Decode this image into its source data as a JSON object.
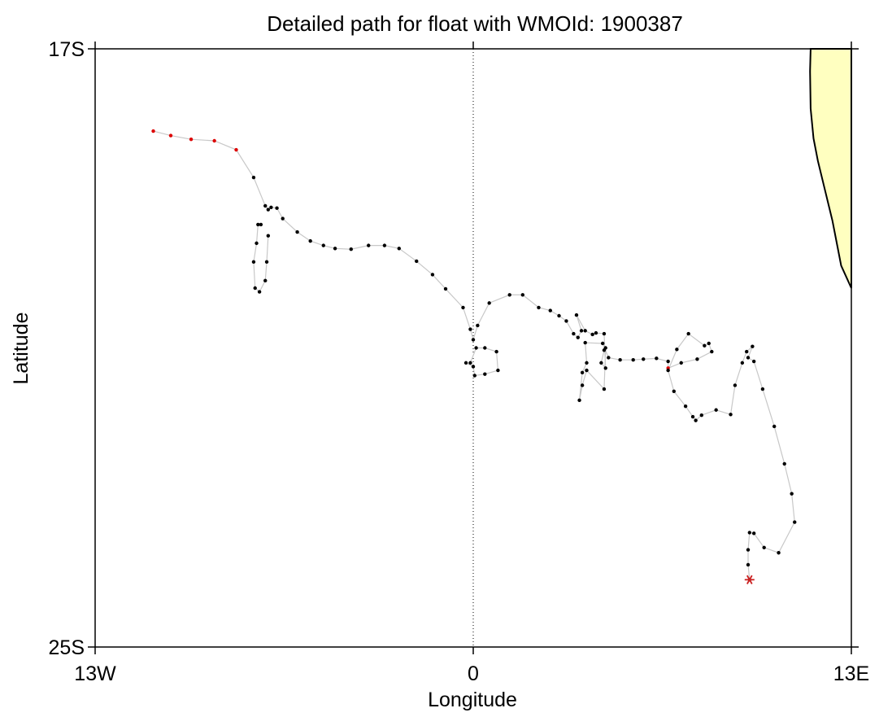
{
  "chart_data": {
    "type": "scatter",
    "title": "Detailed path for float with WMOId: 1900387",
    "xlabel": "Longitude",
    "ylabel": "Latitude",
    "xlim": [
      -13,
      13
    ],
    "ylim": [
      -25,
      -17
    ],
    "x_ticks": [
      {
        "value": -13,
        "label": "13W"
      },
      {
        "value": 0,
        "label": "0"
      },
      {
        "value": 13,
        "label": "13E"
      }
    ],
    "y_ticks": [
      {
        "value": -17,
        "label": "17S"
      },
      {
        "value": -25,
        "label": "25S"
      }
    ],
    "zero_meridian_dotted": true,
    "grid": false,
    "colors": {
      "path_line": "#c8c8c8",
      "profile_point": "#000000",
      "highlight_point": "#dd0000",
      "start_marker": "#cc2222",
      "land": "#ffffc0",
      "coastline": "#000000"
    },
    "start_marker": {
      "x": 9.5,
      "y": -24.1,
      "symbol": "asterisk"
    },
    "path": [
      {
        "x": -11.0,
        "y": -18.1,
        "highlight": true
      },
      {
        "x": -10.4,
        "y": -18.16,
        "highlight": true
      },
      {
        "x": -9.7,
        "y": -18.21,
        "highlight": true
      },
      {
        "x": -8.9,
        "y": -18.23,
        "highlight": true
      },
      {
        "x": -8.15,
        "y": -18.35,
        "highlight": true
      },
      {
        "x": -7.55,
        "y": -18.72
      },
      {
        "x": -7.15,
        "y": -19.1
      },
      {
        "x": -7.05,
        "y": -19.15
      },
      {
        "x": -6.95,
        "y": -19.12
      },
      {
        "x": -6.75,
        "y": -19.13
      },
      {
        "x": -6.55,
        "y": -19.27
      },
      {
        "x": -6.05,
        "y": -19.45
      },
      {
        "x": -5.6,
        "y": -19.57
      },
      {
        "x": -5.15,
        "y": -19.63
      },
      {
        "x": -4.75,
        "y": -19.67
      },
      {
        "x": -4.2,
        "y": -19.68
      },
      {
        "x": -3.6,
        "y": -19.63
      },
      {
        "x": -3.05,
        "y": -19.63
      },
      {
        "x": -2.55,
        "y": -19.67
      },
      {
        "x": -1.95,
        "y": -19.84
      },
      {
        "x": -1.4,
        "y": -20.02
      },
      {
        "x": -0.95,
        "y": -20.21
      },
      {
        "x": -0.35,
        "y": -20.46
      },
      {
        "x": -0.1,
        "y": -20.75
      },
      {
        "x": 0.0,
        "y": -20.89
      },
      {
        "x": 0.15,
        "y": -20.7
      },
      {
        "x": 0.55,
        "y": -20.4
      },
      {
        "x": 1.25,
        "y": -20.29
      },
      {
        "x": 1.7,
        "y": -20.29
      },
      {
        "x": 2.25,
        "y": -20.46
      },
      {
        "x": 2.65,
        "y": -20.5
      },
      {
        "x": 2.95,
        "y": -20.57
      },
      {
        "x": 3.2,
        "y": -20.64
      },
      {
        "x": 3.45,
        "y": -20.81
      },
      {
        "x": 3.6,
        "y": -20.86
      },
      {
        "x": 3.72,
        "y": -20.77
      },
      {
        "x": 3.55,
        "y": -20.56
      },
      {
        "x": 3.85,
        "y": -20.77
      },
      {
        "x": 4.1,
        "y": -20.82
      },
      {
        "x": 4.22,
        "y": -20.8
      },
      {
        "x": 4.5,
        "y": -20.81
      },
      {
        "x": 4.55,
        "y": -21.27
      },
      {
        "x": 4.4,
        "y": -21.2
      },
      {
        "x": 4.5,
        "y": -21.03
      },
      {
        "x": 4.55,
        "y": -21.0
      },
      {
        "x": 4.5,
        "y": -21.55
      },
      {
        "x": 3.9,
        "y": -21.3
      },
      {
        "x": 3.75,
        "y": -21.5
      },
      {
        "x": 3.65,
        "y": -21.7
      },
      {
        "x": 3.75,
        "y": -21.33
      },
      {
        "x": 3.9,
        "y": -21.2
      },
      {
        "x": 3.85,
        "y": -20.93
      },
      {
        "x": 4.45,
        "y": -20.94
      },
      {
        "x": 4.65,
        "y": -21.13
      },
      {
        "x": 5.05,
        "y": -21.16
      },
      {
        "x": 5.5,
        "y": -21.16
      },
      {
        "x": 5.85,
        "y": -21.15
      },
      {
        "x": 6.3,
        "y": -21.14
      },
      {
        "x": 6.7,
        "y": -21.18
      },
      {
        "x": 6.7,
        "y": -21.27,
        "highlight": true
      },
      {
        "x": 7.15,
        "y": -21.2
      },
      {
        "x": 7.7,
        "y": -21.15
      },
      {
        "x": 8.2,
        "y": -21.05
      },
      {
        "x": 8.1,
        "y": -20.94
      },
      {
        "x": 7.95,
        "y": -20.97
      },
      {
        "x": 7.4,
        "y": -20.81
      },
      {
        "x": 7.0,
        "y": -21.02
      },
      {
        "x": 6.7,
        "y": -21.3
      },
      {
        "x": 6.9,
        "y": -21.58
      },
      {
        "x": 7.3,
        "y": -21.78
      },
      {
        "x": 7.55,
        "y": -21.92
      },
      {
        "x": 7.65,
        "y": -21.97
      },
      {
        "x": 7.85,
        "y": -21.9
      },
      {
        "x": 8.35,
        "y": -21.83
      },
      {
        "x": 8.85,
        "y": -21.89
      },
      {
        "x": 9.0,
        "y": -21.5
      },
      {
        "x": 9.25,
        "y": -21.2
      },
      {
        "x": 9.4,
        "y": -21.05
      },
      {
        "x": 9.6,
        "y": -20.98
      },
      {
        "x": 9.45,
        "y": -21.13
      },
      {
        "x": 9.65,
        "y": -21.18
      },
      {
        "x": 9.95,
        "y": -21.55
      },
      {
        "x": 10.35,
        "y": -22.05
      },
      {
        "x": 10.7,
        "y": -22.55
      },
      {
        "x": 10.95,
        "y": -22.95
      },
      {
        "x": 11.05,
        "y": -23.33
      },
      {
        "x": 10.5,
        "y": -23.74
      },
      {
        "x": 10.0,
        "y": -23.67
      },
      {
        "x": 9.65,
        "y": -23.48
      },
      {
        "x": 9.5,
        "y": -23.47
      },
      {
        "x": 9.45,
        "y": -23.7
      },
      {
        "x": 9.45,
        "y": -23.9
      },
      {
        "x": 9.5,
        "y": -24.1
      }
    ],
    "loops": [
      {
        "points": [
          {
            "x": -7.3,
            "y": -19.35
          },
          {
            "x": -7.4,
            "y": -19.35
          },
          {
            "x": -7.45,
            "y": -19.6
          },
          {
            "x": -7.55,
            "y": -19.85
          },
          {
            "x": -7.5,
            "y": -20.2
          },
          {
            "x": -7.35,
            "y": -20.25
          },
          {
            "x": -7.15,
            "y": -20.1
          },
          {
            "x": -7.1,
            "y": -19.85
          },
          {
            "x": -7.05,
            "y": -19.5
          }
        ]
      },
      {
        "points": [
          {
            "x": -0.1,
            "y": -21.2
          },
          {
            "x": 0.1,
            "y": -21.0
          },
          {
            "x": 0.4,
            "y": -21.0
          },
          {
            "x": 0.8,
            "y": -21.05
          },
          {
            "x": 0.85,
            "y": -21.3
          },
          {
            "x": 0.4,
            "y": -21.35
          },
          {
            "x": 0.05,
            "y": -21.37
          },
          {
            "x": 0.0,
            "y": -21.25
          },
          {
            "x": -0.25,
            "y": -21.2
          }
        ]
      }
    ],
    "land": [
      {
        "x": 11.6,
        "y": -17.0
      },
      {
        "x": 11.58,
        "y": -17.3
      },
      {
        "x": 11.6,
        "y": -17.8
      },
      {
        "x": 11.7,
        "y": -18.2
      },
      {
        "x": 11.85,
        "y": -18.5
      },
      {
        "x": 12.1,
        "y": -18.9
      },
      {
        "x": 12.35,
        "y": -19.3
      },
      {
        "x": 12.5,
        "y": -19.6
      },
      {
        "x": 12.65,
        "y": -19.9
      },
      {
        "x": 13.0,
        "y": -20.2
      },
      {
        "x": 13.0,
        "y": -17.0
      }
    ]
  }
}
